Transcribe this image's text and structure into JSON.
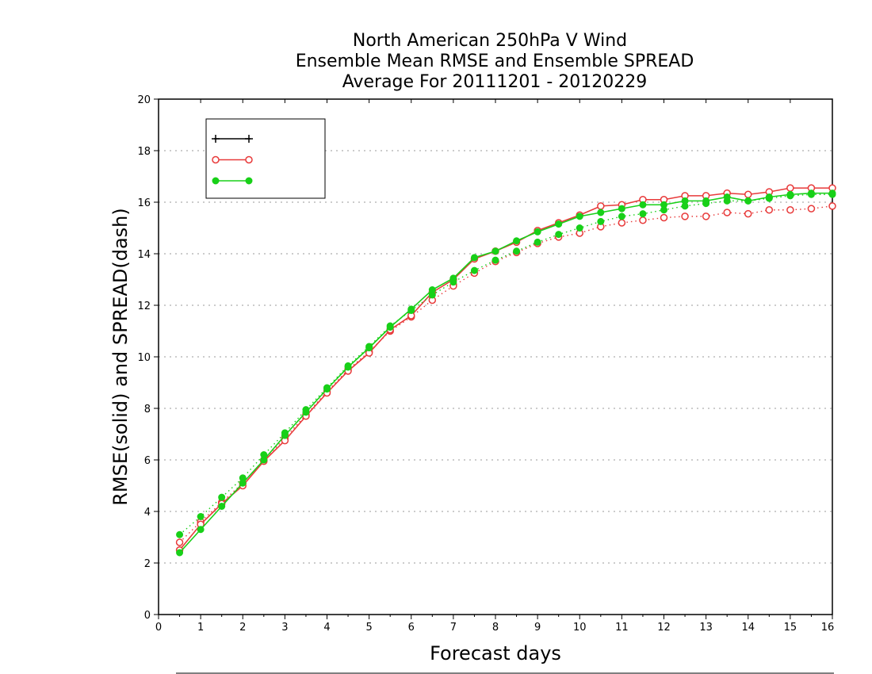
{
  "chart_data": {
    "type": "line",
    "title_lines": [
      "North American 250hPa V Wind",
      "Ensemble Mean RMSE and Ensemble SPREAD",
      "Average For 20111201 - 20120229"
    ],
    "xlabel": "Forecast days",
    "ylabel": "RMSE(solid) and SPREAD(dash)",
    "xlim": [
      0,
      16
    ],
    "ylim": [
      0,
      20
    ],
    "x_ticks": [
      0,
      1,
      2,
      3,
      4,
      5,
      6,
      7,
      8,
      9,
      10,
      11,
      12,
      13,
      14,
      15,
      16
    ],
    "y_ticks": [
      0,
      2,
      4,
      6,
      8,
      10,
      12,
      14,
      16,
      18,
      20
    ],
    "grid": "horizontal dotted",
    "legend_position": "top-left",
    "x": [
      0.5,
      1,
      1.5,
      2,
      2.5,
      3,
      3.5,
      4,
      4.5,
      5,
      5.5,
      6,
      6.5,
      7,
      7.5,
      8,
      8.5,
      9,
      9.5,
      10,
      10.5,
      11,
      11.5,
      12,
      12.5,
      13,
      13.5,
      14,
      14.5,
      15,
      15.5,
      16
    ],
    "series": [
      {
        "name": "",
        "color": "#000000",
        "marker": "plus",
        "rmse": null,
        "spread": null
      },
      {
        "name": "",
        "color": "#e83a3a",
        "marker": "open-circle",
        "rmse": [
          2.5,
          3.5,
          4.3,
          5.0,
          5.95,
          6.75,
          7.7,
          8.6,
          9.45,
          10.15,
          11.05,
          11.6,
          12.5,
          13.0,
          13.8,
          14.1,
          14.45,
          14.9,
          15.2,
          15.5,
          15.85,
          15.9,
          16.1,
          16.1,
          16.25,
          16.25,
          16.35,
          16.3,
          16.4,
          16.55,
          16.55,
          16.55
        ],
        "spread": [
          2.8,
          3.6,
          4.35,
          5.1,
          6.0,
          6.85,
          7.75,
          8.65,
          9.5,
          10.2,
          11.0,
          11.55,
          12.2,
          12.75,
          13.25,
          13.7,
          14.05,
          14.4,
          14.65,
          14.8,
          15.05,
          15.2,
          15.3,
          15.4,
          15.45,
          15.45,
          15.6,
          15.55,
          15.7,
          15.7,
          15.75,
          15.85
        ]
      },
      {
        "name": "",
        "color": "#18d018",
        "marker": "filled-circle",
        "rmse": [
          2.4,
          3.3,
          4.2,
          5.1,
          6.0,
          6.95,
          7.85,
          8.75,
          9.6,
          10.35,
          11.15,
          11.85,
          12.6,
          13.05,
          13.85,
          14.1,
          14.5,
          14.85,
          15.15,
          15.45,
          15.6,
          15.75,
          15.9,
          15.9,
          16.05,
          16.05,
          16.2,
          16.05,
          16.2,
          16.3,
          16.35,
          16.35
        ],
        "spread": [
          3.1,
          3.8,
          4.55,
          5.3,
          6.2,
          7.05,
          7.95,
          8.8,
          9.65,
          10.4,
          11.2,
          11.8,
          12.4,
          12.9,
          13.35,
          13.75,
          14.1,
          14.45,
          14.75,
          15.0,
          15.25,
          15.45,
          15.55,
          15.7,
          15.85,
          15.95,
          16.05,
          16.05,
          16.15,
          16.25,
          16.3,
          16.3
        ]
      }
    ]
  }
}
